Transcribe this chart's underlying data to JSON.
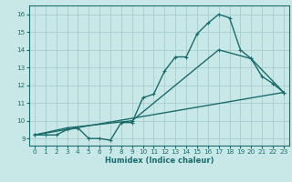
{
  "xlabel": "Humidex (Indice chaleur)",
  "background_color": "#c8e8e8",
  "grid_color": "#a8cccc",
  "line_color": "#1a6b6b",
  "xlim": [
    -0.5,
    23.5
  ],
  "ylim": [
    8.6,
    16.5
  ],
  "xticks": [
    0,
    1,
    2,
    3,
    4,
    5,
    6,
    7,
    8,
    9,
    10,
    11,
    12,
    13,
    14,
    15,
    16,
    17,
    18,
    19,
    20,
    21,
    22,
    23
  ],
  "yticks": [
    9,
    10,
    11,
    12,
    13,
    14,
    15,
    16
  ],
  "curve1_x": [
    0,
    1,
    2,
    3,
    4,
    5,
    6,
    7,
    8,
    9,
    10,
    11,
    12,
    13,
    14,
    15,
    16,
    17,
    18,
    19,
    20,
    21,
    22,
    23
  ],
  "curve1_y": [
    9.2,
    9.2,
    9.2,
    9.5,
    9.6,
    9.0,
    9.0,
    8.9,
    9.9,
    9.9,
    11.3,
    11.5,
    12.8,
    13.6,
    13.6,
    14.9,
    15.5,
    16.0,
    15.8,
    14.0,
    13.5,
    12.5,
    12.1,
    11.6
  ],
  "curve2_x": [
    0,
    3,
    9,
    17,
    20,
    23
  ],
  "curve2_y": [
    9.2,
    9.6,
    10.0,
    14.0,
    13.5,
    11.6
  ],
  "curve3_x": [
    0,
    23
  ],
  "curve3_y": [
    9.2,
    11.6
  ],
  "xlabel_fontsize": 6.0,
  "tick_fontsize": 5.2
}
